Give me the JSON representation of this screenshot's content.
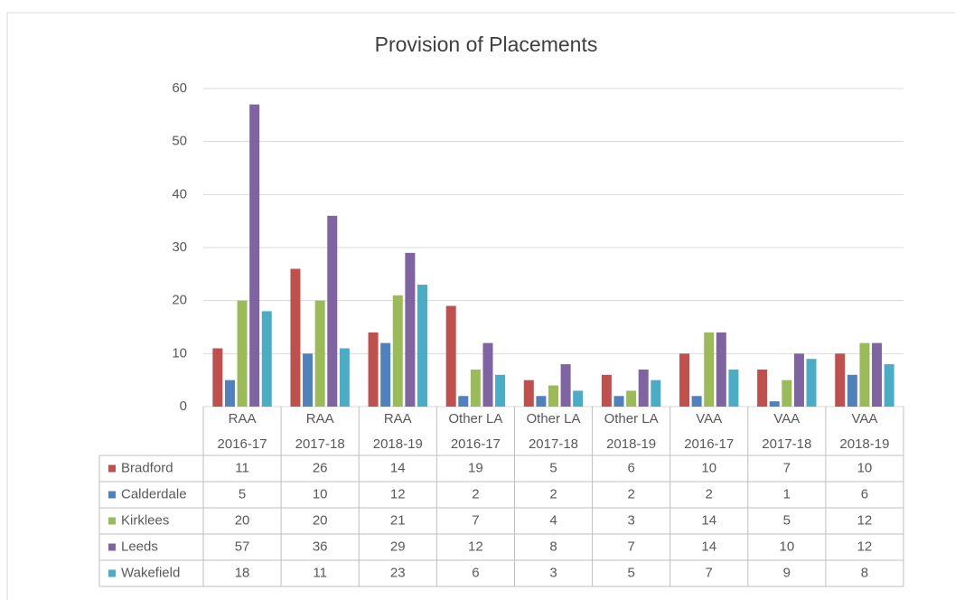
{
  "chart_data": {
    "type": "bar",
    "title": "Provision of Placements",
    "categories": [
      [
        "RAA",
        "2016-17"
      ],
      [
        "RAA",
        "2017-18"
      ],
      [
        "RAA",
        "2018-19"
      ],
      [
        "Other LA",
        "2016-17"
      ],
      [
        "Other LA",
        "2017-18"
      ],
      [
        "Other LA",
        "2018-19"
      ],
      [
        "VAA",
        "2016-17"
      ],
      [
        "VAA",
        "2017-18"
      ],
      [
        "VAA",
        "2018-19"
      ]
    ],
    "series": [
      {
        "name": "Bradford",
        "color": "#c0504d",
        "values": [
          11,
          26,
          14,
          19,
          5,
          6,
          10,
          7,
          10
        ]
      },
      {
        "name": "Calderdale",
        "color": "#4f81bd",
        "values": [
          5,
          10,
          12,
          2,
          2,
          2,
          2,
          1,
          6
        ]
      },
      {
        "name": "Kirklees",
        "color": "#9bbb59",
        "values": [
          20,
          20,
          21,
          7,
          4,
          3,
          14,
          5,
          12
        ]
      },
      {
        "name": "Leeds",
        "color": "#8064a2",
        "values": [
          57,
          36,
          29,
          12,
          8,
          7,
          14,
          10,
          12
        ]
      },
      {
        "name": "Wakefield",
        "color": "#4bacc6",
        "values": [
          18,
          11,
          23,
          6,
          3,
          5,
          7,
          9,
          8
        ]
      }
    ],
    "ylim": [
      0,
      60
    ],
    "yticks": [
      0,
      10,
      20,
      30,
      40,
      50,
      60
    ],
    "grid": true,
    "data_table": true
  }
}
